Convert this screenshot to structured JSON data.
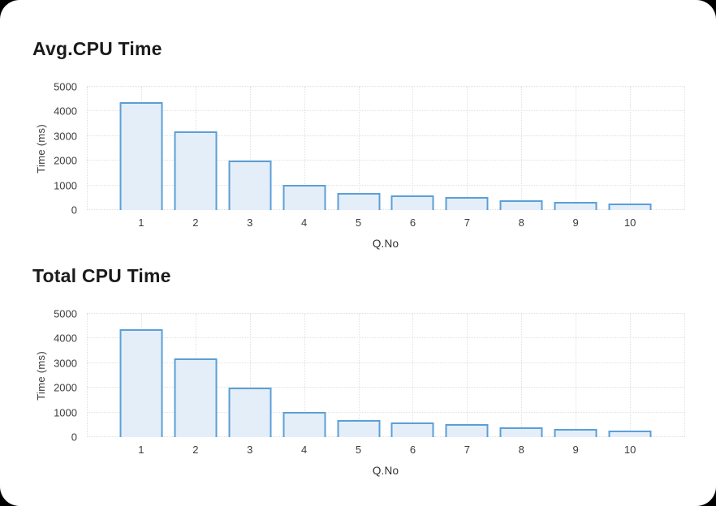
{
  "window": {
    "background": "#000000",
    "card_background": "#ffffff"
  },
  "chart_data": [
    {
      "type": "bar",
      "title": "Avg.CPU Time",
      "xlabel": "Q.No",
      "ylabel": "Time (ms)",
      "categories": [
        "1",
        "2",
        "3",
        "4",
        "5",
        "6",
        "7",
        "8",
        "9",
        "10"
      ],
      "values": [
        4380,
        3200,
        2020,
        1020,
        690,
        580,
        520,
        400,
        330,
        280
      ],
      "y_ticks": [
        0,
        1000,
        2000,
        3000,
        4000,
        5000
      ],
      "ylim": [
        0,
        5000
      ],
      "grid": "dotted",
      "legend": "none",
      "bar_fill": "#e4eef9",
      "bar_border": "#5b9fd6"
    },
    {
      "type": "bar",
      "title": "Total CPU Time",
      "xlabel": "Q.No",
      "ylabel": "Time (ms)",
      "categories": [
        "1",
        "2",
        "3",
        "4",
        "5",
        "6",
        "7",
        "8",
        "9",
        "10"
      ],
      "values": [
        4380,
        3200,
        2020,
        1020,
        690,
        580,
        520,
        400,
        330,
        280
      ],
      "y_ticks": [
        0,
        1000,
        2000,
        3000,
        4000,
        5000
      ],
      "ylim": [
        0,
        5000
      ],
      "grid": "dotted",
      "legend": "none",
      "bar_fill": "#e4eef9",
      "bar_border": "#5b9fd6"
    }
  ]
}
